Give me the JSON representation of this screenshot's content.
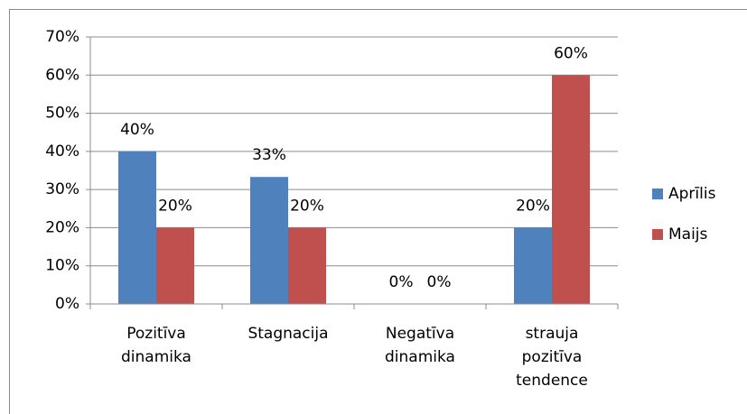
{
  "chart_data": {
    "type": "bar",
    "categories": [
      "Pozitīva dinamika",
      "Stagnacija",
      "Negatīva dinamika",
      "strauja pozitīva tendence"
    ],
    "series": [
      {
        "name": "Aprīlis",
        "color": "#4f81bd",
        "values": [
          40,
          33.3,
          0,
          20
        ],
        "value_labels": [
          "40%",
          "33%",
          "0%",
          "20%"
        ]
      },
      {
        "name": "Maijs",
        "color": "#c0504d",
        "values": [
          20,
          20,
          0,
          60
        ],
        "value_labels": [
          "20%",
          "20%",
          "0%",
          "60%"
        ]
      }
    ],
    "ylim": [
      0,
      70
    ],
    "yticks": [
      {
        "value": 0,
        "label": "0%"
      },
      {
        "value": 10,
        "label": "10%"
      },
      {
        "value": 20,
        "label": "20%"
      },
      {
        "value": 30,
        "label": "30%"
      },
      {
        "value": 40,
        "label": "40%"
      },
      {
        "value": 50,
        "label": "50%"
      },
      {
        "value": 60,
        "label": "60%"
      },
      {
        "value": 70,
        "label": "70%"
      }
    ],
    "grid": true,
    "legend": "right"
  }
}
